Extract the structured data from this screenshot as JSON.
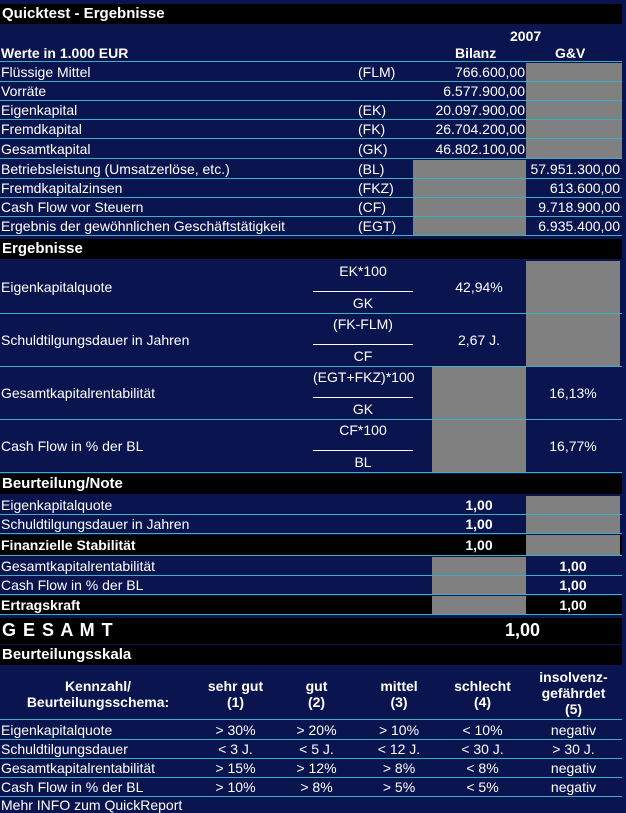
{
  "title": "Quicktest - Ergebnisse",
  "header": {
    "year": "2007",
    "units": "Werte in 1.000 EUR",
    "col_bilanz": "Bilanz",
    "col_guv": "G&V"
  },
  "inputs": [
    {
      "label": "Flüssige Mittel",
      "abbr": "(FLM)",
      "bilanz": "766.600,00",
      "guv": ""
    },
    {
      "label": "Vorräte",
      "abbr": "",
      "bilanz": "6.577.900,00",
      "guv": ""
    },
    {
      "label": "Eigenkapital",
      "abbr": "(EK)",
      "bilanz": "20.097.900,00",
      "guv": ""
    },
    {
      "label": "Fremdkapital",
      "abbr": "(FK)",
      "bilanz": "26.704.200,00",
      "guv": ""
    },
    {
      "label": "Gesamtkapital",
      "abbr": "(GK)",
      "bilanz": "46.802.100,00",
      "guv": ""
    },
    {
      "label": "Betriebsleistung (Umsatzerlöse, etc.)",
      "abbr": "(BL)",
      "bilanz": "",
      "guv": "57.951.300,00"
    },
    {
      "label": "Fremdkapitalzinsen",
      "abbr": "(FKZ)",
      "bilanz": "",
      "guv": "613.600,00"
    },
    {
      "label": "Cash Flow vor Steuern",
      "abbr": "(CF)",
      "bilanz": "",
      "guv": "9.718.900,00"
    },
    {
      "label": "Ergebnis der gewöhnlichen Geschäftstätigkeit",
      "abbr": "(EGT)",
      "bilanz": "",
      "guv": "6.935.400,00"
    }
  ],
  "ergebnisse": {
    "title": "Ergebnisse",
    "rows": [
      {
        "label": "Eigenkapitalquote",
        "num": "EK*100",
        "den": "GK",
        "bilanz": "42,94%",
        "guv": ""
      },
      {
        "label": "Schuldtilgungsdauer in Jahren",
        "num": "(FK-FLM)",
        "den": "CF",
        "bilanz": "2,67 J.",
        "guv": ""
      },
      {
        "label": "Gesamtkapitalrentabilität",
        "num": "(EGT+FKZ)*100",
        "den": "GK",
        "bilanz": "",
        "guv": "16,13%"
      },
      {
        "label": "Cash Flow in % der BL",
        "num": "CF*100",
        "den": "BL",
        "bilanz": "",
        "guv": "16,77%"
      }
    ]
  },
  "beurteilung": {
    "title": "Beurteilung/Note",
    "rows": [
      {
        "label": "Eigenkapitalquote",
        "bilanz": "1,00",
        "guv": ""
      },
      {
        "label": "Schuldtilgungsdauer in Jahren",
        "bilanz": "1,00",
        "guv": ""
      },
      {
        "label": "Finanzielle Stabilität",
        "bilanz": "1,00",
        "guv": ""
      },
      {
        "label": "Gesamtkapitalrentabilität",
        "bilanz": "",
        "guv": "1,00"
      },
      {
        "label": "Cash Flow in % der BL",
        "bilanz": "",
        "guv": "1,00"
      },
      {
        "label": "Ertragskraft",
        "bilanz": "",
        "guv": "1,00"
      }
    ],
    "gesamt_label": "G E S A M T",
    "gesamt_value": "1,00"
  },
  "skala": {
    "title": "Beurteilungsskala",
    "headers": [
      [
        "Kennzahl/",
        "Beurteilungsschema:"
      ],
      [
        "sehr gut",
        "(1)"
      ],
      [
        "gut",
        "(2)"
      ],
      [
        "mittel",
        "(3)"
      ],
      [
        "schlecht",
        "(4)"
      ],
      [
        "insolvenz-",
        "gefährdet",
        "(5)"
      ]
    ],
    "rows": [
      {
        "label": "Eigenkapitalquote",
        "values": [
          "> 30%",
          "> 20%",
          "> 10%",
          "< 10%",
          "negativ"
        ]
      },
      {
        "label": "Schuldtilgungsdauer",
        "values": [
          "< 3 J.",
          "< 5 J.",
          "< 12 J.",
          "< 30 J.",
          "> 30 J."
        ]
      },
      {
        "label": "Gesamtkapitalrentabilität",
        "values": [
          "> 15%",
          "> 12%",
          "> 8%",
          "< 8%",
          "negativ"
        ]
      },
      {
        "label": "Cash Flow in % der BL",
        "values": [
          "> 10%",
          "> 8%",
          "> 5%",
          "< 5%",
          "negativ"
        ]
      }
    ]
  },
  "footer": "Mehr INFO zum QuickReport"
}
